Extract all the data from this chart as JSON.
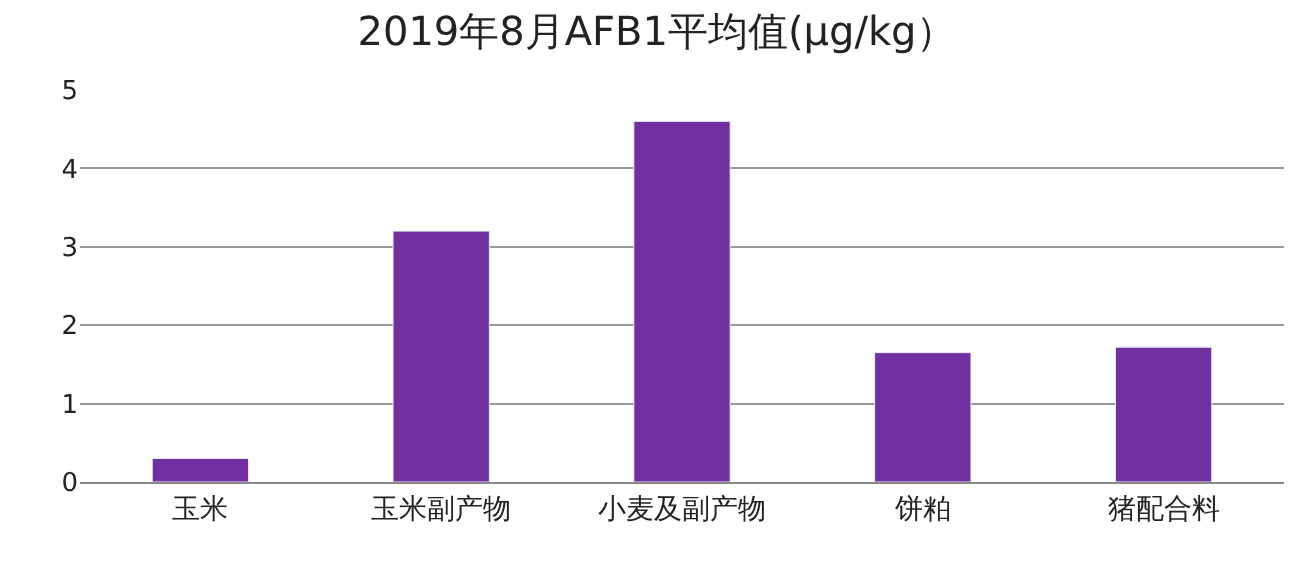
{
  "chart_data": {
    "type": "bar",
    "title": "2019年8月AFB1平均值(μg/kg）",
    "categories": [
      "玉米",
      "玉米副产物",
      "小麦及副产物",
      "饼粕",
      "猪配合料"
    ],
    "values": [
      0.3,
      3.2,
      4.6,
      1.65,
      1.72
    ],
    "color": "#7030a0",
    "ylim": [
      0,
      5
    ],
    "yticks": [
      0,
      1,
      2,
      3,
      4,
      5
    ],
    "grid": "y",
    "legend": false
  }
}
